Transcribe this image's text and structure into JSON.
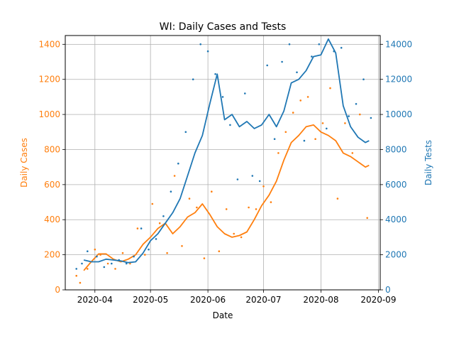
{
  "chart_data": {
    "type": "line",
    "title": "WI: Daily Cases and Tests",
    "xlabel": "Date",
    "ylabel_left": "Daily Cases",
    "ylabel_right": "Daily Tests",
    "xlim": [
      "2020-03-16",
      "2020-09-02"
    ],
    "ylim_left": [
      0,
      1450
    ],
    "ylim_right": [
      0,
      14500
    ],
    "grid": true,
    "x_ticks": [
      "2020-04",
      "2020-05",
      "2020-06",
      "2020-07",
      "2020-08",
      "2020-09"
    ],
    "y_ticks_left": [
      "0",
      "200",
      "400",
      "600",
      "800",
      "1000",
      "1200",
      "1400"
    ],
    "y_ticks_right": [
      "0",
      "2000",
      "4000",
      "6000",
      "8000",
      "10000",
      "12000",
      "14000"
    ],
    "colors": {
      "cases": "#ff7f0e",
      "tests": "#1f77b4"
    },
    "series": [
      {
        "axis": "left",
        "style": "line",
        "x": [
          "2020-03-26",
          "2020-03-30",
          "2020-04-03",
          "2020-04-07",
          "2020-04-11",
          "2020-04-15",
          "2020-04-19",
          "2020-04-23",
          "2020-04-27",
          "2020-05-01",
          "2020-05-05",
          "2020-05-09",
          "2020-05-13",
          "2020-05-17",
          "2020-05-21",
          "2020-05-25",
          "2020-05-29",
          "2020-06-02",
          "2020-06-06",
          "2020-06-10",
          "2020-06-14",
          "2020-06-18",
          "2020-06-22",
          "2020-06-26",
          "2020-06-30",
          "2020-07-04",
          "2020-07-08",
          "2020-07-12",
          "2020-07-16",
          "2020-07-20",
          "2020-07-24",
          "2020-07-28",
          "2020-08-01",
          "2020-08-05",
          "2020-08-09",
          "2020-08-13",
          "2020-08-17",
          "2020-08-21",
          "2020-08-25",
          "2020-08-27"
        ],
        "values": [
          110,
          160,
          205,
          205,
          175,
          160,
          175,
          200,
          260,
          300,
          350,
          380,
          320,
          360,
          415,
          440,
          490,
          430,
          360,
          320,
          300,
          310,
          330,
          400,
          480,
          540,
          620,
          740,
          840,
          880,
          930,
          940,
          900,
          880,
          850,
          780,
          760,
          730,
          700,
          710
        ]
      },
      {
        "axis": "left",
        "style": "points",
        "x": [
          "2020-03-22",
          "2020-03-24",
          "2020-03-28",
          "2020-04-01",
          "2020-04-04",
          "2020-04-08",
          "2020-04-12",
          "2020-04-16",
          "2020-04-20",
          "2020-04-24",
          "2020-04-28",
          "2020-05-02",
          "2020-05-06",
          "2020-05-10",
          "2020-05-14",
          "2020-05-18",
          "2020-05-22",
          "2020-05-26",
          "2020-05-30",
          "2020-06-03",
          "2020-06-07",
          "2020-06-11",
          "2020-06-15",
          "2020-06-19",
          "2020-06-23",
          "2020-06-27",
          "2020-07-01",
          "2020-07-05",
          "2020-07-09",
          "2020-07-13",
          "2020-07-17",
          "2020-07-21",
          "2020-07-25",
          "2020-07-29",
          "2020-08-02",
          "2020-08-06",
          "2020-08-10",
          "2020-08-14",
          "2020-08-18",
          "2020-08-22",
          "2020-08-26"
        ],
        "values": [
          80,
          40,
          120,
          230,
          200,
          150,
          120,
          210,
          150,
          350,
          200,
          490,
          380,
          210,
          650,
          250,
          520,
          470,
          180,
          560,
          220,
          460,
          320,
          300,
          470,
          460,
          590,
          500,
          780,
          900,
          1010,
          1080,
          1100,
          860,
          950,
          1150,
          520,
          950,
          780,
          1000,
          410
        ]
      },
      {
        "axis": "right",
        "style": "line",
        "x": [
          "2020-03-26",
          "2020-03-30",
          "2020-04-03",
          "2020-04-07",
          "2020-04-11",
          "2020-04-15",
          "2020-04-19",
          "2020-04-23",
          "2020-04-27",
          "2020-05-01",
          "2020-05-05",
          "2020-05-09",
          "2020-05-13",
          "2020-05-17",
          "2020-05-21",
          "2020-05-25",
          "2020-05-29",
          "2020-06-02",
          "2020-06-06",
          "2020-06-10",
          "2020-06-14",
          "2020-06-18",
          "2020-06-22",
          "2020-06-26",
          "2020-06-30",
          "2020-07-04",
          "2020-07-08",
          "2020-07-12",
          "2020-07-16",
          "2020-07-20",
          "2020-07-24",
          "2020-07-28",
          "2020-08-01",
          "2020-08-05",
          "2020-08-09",
          "2020-08-13",
          "2020-08-17",
          "2020-08-21",
          "2020-08-25",
          "2020-08-27"
        ],
        "values": [
          1700,
          1600,
          1600,
          1750,
          1700,
          1650,
          1550,
          1600,
          2100,
          2800,
          3200,
          3800,
          4400,
          5200,
          6500,
          7800,
          8800,
          10600,
          12300,
          9700,
          10000,
          9300,
          9600,
          9200,
          9400,
          10000,
          9300,
          10200,
          11800,
          12000,
          12500,
          13300,
          13400,
          14300,
          13500,
          10500,
          9300,
          8700,
          8400,
          8500
        ]
      },
      {
        "axis": "right",
        "style": "points",
        "x": [
          "2020-03-22",
          "2020-03-25",
          "2020-03-28",
          "2020-04-02",
          "2020-04-06",
          "2020-04-10",
          "2020-04-14",
          "2020-04-18",
          "2020-04-22",
          "2020-04-26",
          "2020-04-30",
          "2020-05-04",
          "2020-05-08",
          "2020-05-12",
          "2020-05-16",
          "2020-05-20",
          "2020-05-24",
          "2020-05-28",
          "2020-06-01",
          "2020-06-05",
          "2020-06-09",
          "2020-06-13",
          "2020-06-17",
          "2020-06-21",
          "2020-06-25",
          "2020-06-29",
          "2020-07-03",
          "2020-07-07",
          "2020-07-11",
          "2020-07-15",
          "2020-07-19",
          "2020-07-23",
          "2020-07-27",
          "2020-07-31",
          "2020-08-04",
          "2020-08-08",
          "2020-08-12",
          "2020-08-16",
          "2020-08-20",
          "2020-08-24",
          "2020-08-28"
        ],
        "values": [
          1200,
          1500,
          2200,
          1900,
          1300,
          1500,
          1700,
          1500,
          1900,
          3500,
          2300,
          2900,
          4200,
          5600,
          7200,
          9000,
          12000,
          14000,
          13600,
          12300,
          11000,
          9400,
          6300,
          11200,
          6500,
          6200,
          12800,
          8600,
          13000,
          14000,
          12400,
          8500,
          13300,
          14000,
          9200,
          13600,
          13800,
          9900,
          10600,
          12000,
          9800
        ]
      }
    ]
  }
}
